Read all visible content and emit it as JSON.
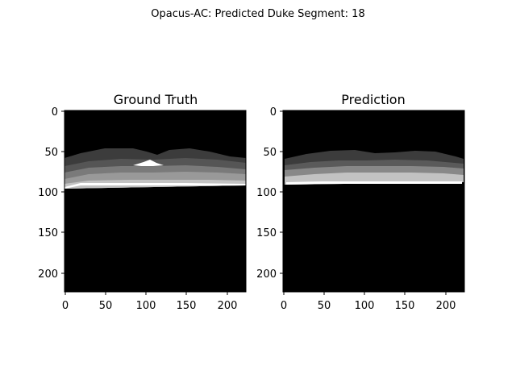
{
  "figure": {
    "suptitle": "Opacus-AC: Predicted Duke Segment: 18"
  },
  "panels": [
    {
      "title": "Ground Truth",
      "xticks": [
        "0",
        "50",
        "100",
        "150",
        "200"
      ],
      "yticks": [
        "0",
        "50",
        "100",
        "150",
        "200"
      ]
    },
    {
      "title": "Prediction",
      "xticks": [
        "0",
        "50",
        "100",
        "150",
        "200"
      ],
      "yticks": [
        "0",
        "50",
        "100",
        "150",
        "200"
      ]
    }
  ],
  "image_extent": [
    0,
    224
  ],
  "colors": {
    "background": "#000000",
    "layer_dark": "#3c3c3c",
    "layer_mid": "#6a6a6a",
    "layer_light": "#999999",
    "layer_lighter": "#c2c2c2",
    "layer_white": "#ffffff"
  }
}
